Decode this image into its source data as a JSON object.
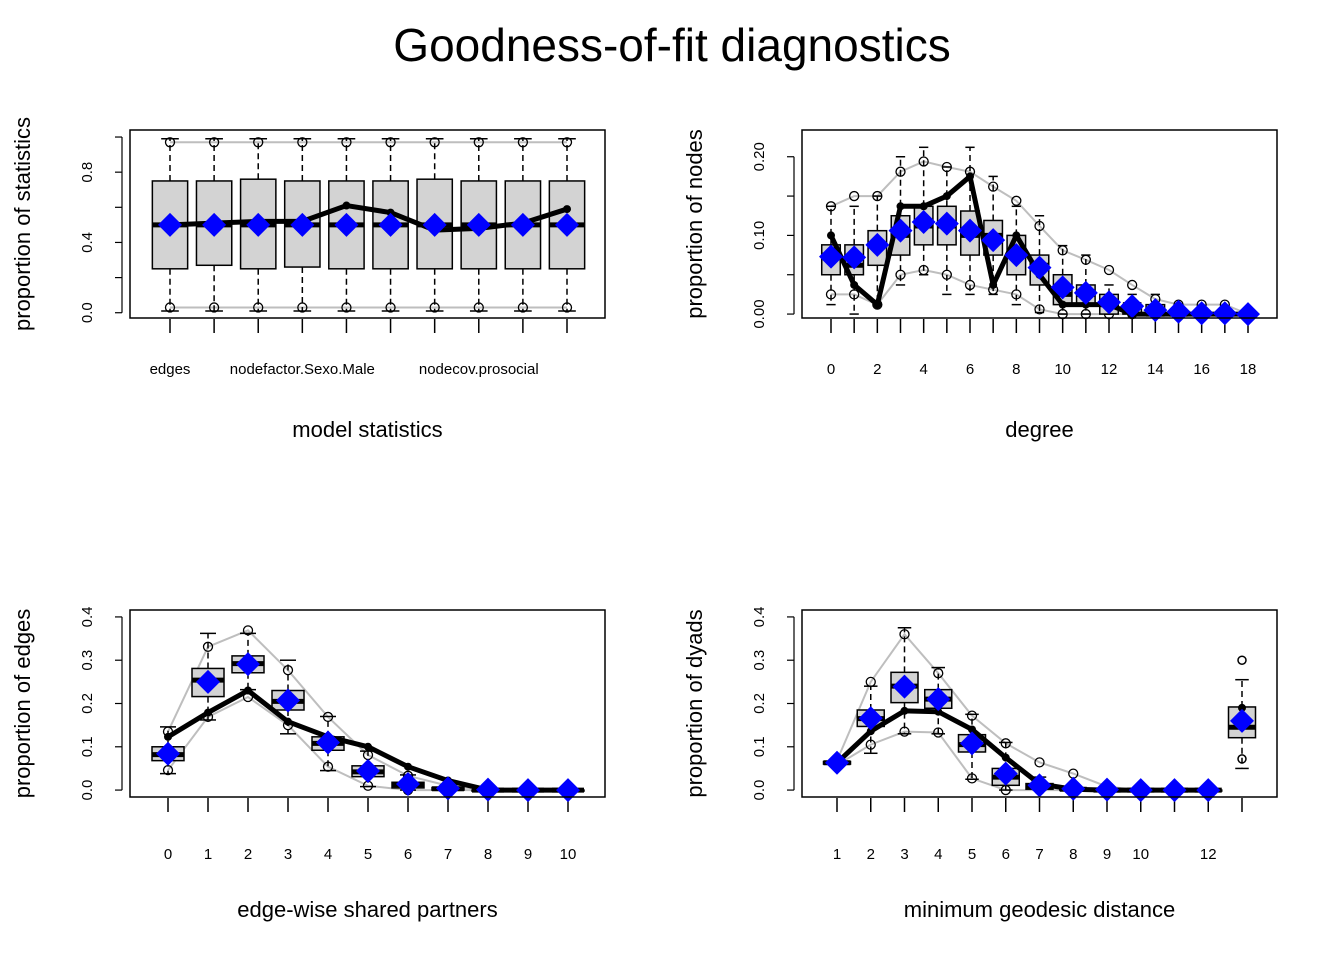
{
  "title": "Goodness-of-fit diagnostics",
  "colors": {
    "observed": "#000000",
    "simulated_mean": "#0000ff",
    "box_fill": "#d3d3d3",
    "bounds": "#bebebe"
  },
  "chart_data": [
    {
      "id": "model-statistics",
      "type": "boxplot",
      "xlabel": "model statistics",
      "ylabel": "proportion of statistics",
      "ylim": [
        -0.03,
        1.04
      ],
      "yticks": [
        0.0,
        0.4,
        0.8
      ],
      "ytick_marks": [
        0.0,
        0.2,
        0.4,
        0.6,
        0.8,
        1.0
      ],
      "yticklabels": [
        "0.0",
        "0.4",
        "0.8"
      ],
      "x": [
        1,
        2,
        3,
        4,
        5,
        6,
        7,
        8,
        9,
        10
      ],
      "xticklabels": [
        {
          "at": 1,
          "label": "edges"
        },
        {
          "at": 4,
          "label": "nodefactor.Sexo.Male"
        },
        {
          "at": 8,
          "label": "nodecov.prosocial"
        }
      ],
      "xtick_marks": [
        1,
        2,
        3,
        4,
        5,
        6,
        7,
        8,
        9,
        10
      ],
      "observed": [
        0.5,
        0.51,
        0.52,
        0.52,
        0.61,
        0.57,
        0.47,
        0.48,
        0.51,
        0.59
      ],
      "simulated_mean": [
        0.5,
        0.5,
        0.5,
        0.5,
        0.5,
        0.5,
        0.5,
        0.5,
        0.5,
        0.5
      ],
      "boxes": [
        {
          "q1": 0.25,
          "med": 0.5,
          "q3": 0.75,
          "lo": 0.01,
          "hi": 0.99
        },
        {
          "q1": 0.27,
          "med": 0.5,
          "q3": 0.75,
          "lo": 0.01,
          "hi": 0.99
        },
        {
          "q1": 0.25,
          "med": 0.5,
          "q3": 0.76,
          "lo": 0.01,
          "hi": 0.99
        },
        {
          "q1": 0.26,
          "med": 0.5,
          "q3": 0.75,
          "lo": 0.01,
          "hi": 0.99
        },
        {
          "q1": 0.25,
          "med": 0.5,
          "q3": 0.75,
          "lo": 0.01,
          "hi": 0.99
        },
        {
          "q1": 0.25,
          "med": 0.5,
          "q3": 0.75,
          "lo": 0.01,
          "hi": 0.99
        },
        {
          "q1": 0.25,
          "med": 0.5,
          "q3": 0.76,
          "lo": 0.01,
          "hi": 0.99
        },
        {
          "q1": 0.25,
          "med": 0.5,
          "q3": 0.75,
          "lo": 0.01,
          "hi": 0.99
        },
        {
          "q1": 0.25,
          "med": 0.5,
          "q3": 0.75,
          "lo": 0.01,
          "hi": 0.99
        },
        {
          "q1": 0.25,
          "med": 0.5,
          "q3": 0.75,
          "lo": 0.01,
          "hi": 0.99
        }
      ],
      "upper_bound": [
        0.97,
        0.97,
        0.97,
        0.97,
        0.97,
        0.97,
        0.97,
        0.97,
        0.97,
        0.97
      ],
      "lower_bound": [
        0.03,
        0.03,
        0.03,
        0.03,
        0.03,
        0.03,
        0.03,
        0.03,
        0.03,
        0.03
      ],
      "outliers": []
    },
    {
      "id": "degree",
      "type": "boxplot",
      "xlabel": "degree",
      "ylabel": "proportion of nodes",
      "ylim": [
        -0.005,
        0.234
      ],
      "yticks": [
        0.0,
        0.1,
        0.2
      ],
      "ytick_marks": [
        0.0,
        0.05,
        0.1,
        0.15,
        0.2
      ],
      "yticklabels": [
        "0.00",
        "0.10",
        "0.20"
      ],
      "x": [
        0,
        1,
        2,
        3,
        4,
        5,
        6,
        7,
        8,
        9,
        10,
        11,
        12,
        13,
        14,
        15,
        16,
        17,
        18
      ],
      "xticklabels": [
        {
          "at": 0,
          "label": "0"
        },
        {
          "at": 2,
          "label": "2"
        },
        {
          "at": 4,
          "label": "4"
        },
        {
          "at": 6,
          "label": "6"
        },
        {
          "at": 8,
          "label": "8"
        },
        {
          "at": 10,
          "label": "10"
        },
        {
          "at": 12,
          "label": "12"
        },
        {
          "at": 14,
          "label": "14"
        },
        {
          "at": 16,
          "label": "16"
        },
        {
          "at": 18,
          "label": "18"
        }
      ],
      "xtick_marks": [
        0,
        1,
        2,
        3,
        4,
        5,
        6,
        7,
        8,
        9,
        10,
        11,
        12,
        13,
        14,
        15,
        16,
        17,
        18
      ],
      "observed": [
        0.1,
        0.037,
        0.012,
        0.137,
        0.137,
        0.15,
        0.175,
        0.037,
        0.1,
        0.05,
        0.012,
        0.012,
        0.012,
        0.0,
        0.0,
        0.0,
        0.0,
        0.0,
        0.0
      ],
      "simulated_mean": [
        0.073,
        0.072,
        0.088,
        0.106,
        0.117,
        0.115,
        0.106,
        0.094,
        0.075,
        0.059,
        0.034,
        0.027,
        0.015,
        0.01,
        0.005,
        0.003,
        0.001,
        0.001,
        0.0
      ],
      "boxes": [
        {
          "q1": 0.05,
          "med": 0.075,
          "q3": 0.088,
          "lo": 0.012,
          "hi": 0.137
        },
        {
          "q1": 0.05,
          "med": 0.062,
          "q3": 0.088,
          "lo": 0.0,
          "hi": 0.137
        },
        {
          "q1": 0.062,
          "med": 0.088,
          "q3": 0.106,
          "lo": 0.012,
          "hi": 0.15
        },
        {
          "q1": 0.075,
          "med": 0.1,
          "q3": 0.125,
          "lo": 0.037,
          "hi": 0.2
        },
        {
          "q1": 0.088,
          "med": 0.112,
          "q3": 0.137,
          "lo": 0.05,
          "hi": 0.212
        },
        {
          "q1": 0.088,
          "med": 0.112,
          "q3": 0.137,
          "lo": 0.025,
          "hi": 0.187
        },
        {
          "q1": 0.075,
          "med": 0.1,
          "q3": 0.131,
          "lo": 0.025,
          "hi": 0.212
        },
        {
          "q1": 0.075,
          "med": 0.1,
          "q3": 0.119,
          "lo": 0.025,
          "hi": 0.175
        },
        {
          "q1": 0.05,
          "med": 0.075,
          "q3": 0.1,
          "lo": 0.012,
          "hi": 0.137
        },
        {
          "q1": 0.037,
          "med": 0.062,
          "q3": 0.075,
          "lo": 0.002,
          "hi": 0.125
        },
        {
          "q1": 0.012,
          "med": 0.025,
          "q3": 0.05,
          "lo": 0.0,
          "hi": 0.087
        },
        {
          "q1": 0.012,
          "med": 0.025,
          "q3": 0.037,
          "lo": 0.0,
          "hi": 0.075
        },
        {
          "q1": 0.0,
          "med": 0.012,
          "q3": 0.025,
          "lo": 0.0,
          "hi": 0.037
        },
        {
          "q1": 0.0,
          "med": 0.012,
          "q3": 0.012,
          "lo": 0.0,
          "hi": 0.025
        },
        {
          "q1": 0.0,
          "med": 0.0,
          "q3": 0.012,
          "lo": 0.0,
          "hi": 0.025
        },
        {
          "q1": 0.0,
          "med": 0.0,
          "q3": 0.0,
          "lo": 0.0,
          "hi": 0.012
        },
        {
          "q1": 0.0,
          "med": 0.0,
          "q3": 0.0,
          "lo": 0.0,
          "hi": 0.0
        },
        {
          "q1": 0.0,
          "med": 0.0,
          "q3": 0.0,
          "lo": 0.0,
          "hi": 0.0
        },
        {
          "q1": 0.0,
          "med": 0.0,
          "q3": 0.0,
          "lo": 0.0,
          "hi": 0.0
        }
      ],
      "upper_bound": [
        0.137,
        0.15,
        0.15,
        0.181,
        0.194,
        0.187,
        0.181,
        0.162,
        0.144,
        0.112,
        0.081,
        0.069,
        0.056,
        0.037,
        0.019,
        0.012,
        0.012,
        0.012,
        0.0
      ],
      "lower_bound": [
        0.025,
        0.025,
        0.012,
        0.05,
        0.056,
        0.05,
        0.037,
        0.031,
        0.025,
        0.006,
        0.0,
        0.0,
        0.0,
        0.0,
        0.0,
        0.0,
        0.0,
        0.0,
        0.0
      ],
      "outliers": []
    },
    {
      "id": "edge-wise-shared-partners",
      "type": "boxplot",
      "xlabel": "edge-wise shared partners",
      "ylabel": "proportion of edges",
      "ylim": [
        -0.016,
        0.416
      ],
      "yticks": [
        0.0,
        0.1,
        0.2,
        0.3,
        0.4
      ],
      "ytick_marks": [
        0.0,
        0.1,
        0.2,
        0.3,
        0.4
      ],
      "yticklabels": [
        "0.0",
        "0.1",
        "0.2",
        "0.3",
        "0.4"
      ],
      "x": [
        0,
        1,
        2,
        3,
        4,
        5,
        6,
        7,
        8,
        9,
        10
      ],
      "xticklabels": [
        {
          "at": 0,
          "label": "0"
        },
        {
          "at": 1,
          "label": "1"
        },
        {
          "at": 2,
          "label": "2"
        },
        {
          "at": 3,
          "label": "3"
        },
        {
          "at": 4,
          "label": "4"
        },
        {
          "at": 5,
          "label": "5"
        },
        {
          "at": 6,
          "label": "6"
        },
        {
          "at": 7,
          "label": "7"
        },
        {
          "at": 8,
          "label": "8"
        },
        {
          "at": 9,
          "label": "9"
        },
        {
          "at": 10,
          "label": "10"
        }
      ],
      "xtick_marks": [
        0,
        1,
        2,
        3,
        4,
        5,
        6,
        7,
        8,
        9,
        10
      ],
      "observed": [
        0.123,
        0.179,
        0.23,
        0.158,
        0.123,
        0.1,
        0.054,
        0.022,
        0.0,
        0.0,
        0.0
      ],
      "simulated_mean": [
        0.084,
        0.25,
        0.291,
        0.207,
        0.11,
        0.044,
        0.014,
        0.004,
        0.001,
        0.0,
        0.0
      ],
      "boxes": [
        {
          "q1": 0.068,
          "med": 0.082,
          "q3": 0.1,
          "lo": 0.038,
          "hi": 0.146
        },
        {
          "q1": 0.216,
          "med": 0.254,
          "q3": 0.281,
          "lo": 0.162,
          "hi": 0.362
        },
        {
          "q1": 0.271,
          "med": 0.292,
          "q3": 0.31,
          "lo": 0.232,
          "hi": 0.362
        },
        {
          "q1": 0.185,
          "med": 0.205,
          "q3": 0.23,
          "lo": 0.13,
          "hi": 0.3
        },
        {
          "q1": 0.092,
          "med": 0.108,
          "q3": 0.123,
          "lo": 0.045,
          "hi": 0.17
        },
        {
          "q1": 0.031,
          "med": 0.042,
          "q3": 0.056,
          "lo": 0.008,
          "hi": 0.09
        },
        {
          "q1": 0.005,
          "med": 0.012,
          "q3": 0.018,
          "lo": 0.0,
          "hi": 0.035
        },
        {
          "q1": 0.0,
          "med": 0.003,
          "q3": 0.006,
          "lo": 0.0,
          "hi": 0.012
        },
        {
          "q1": 0.0,
          "med": 0.0,
          "q3": 0.0,
          "lo": 0.0,
          "hi": 0.0
        },
        {
          "q1": 0.0,
          "med": 0.0,
          "q3": 0.0,
          "lo": 0.0,
          "hi": 0.0
        },
        {
          "q1": 0.0,
          "med": 0.0,
          "q3": 0.0,
          "lo": 0.0,
          "hi": 0.0
        }
      ],
      "upper_bound": [
        0.135,
        0.331,
        0.369,
        0.277,
        0.169,
        0.081,
        0.033,
        0.01,
        0.0,
        0.0,
        0.0
      ],
      "lower_bound": [
        0.046,
        0.169,
        0.215,
        0.15,
        0.054,
        0.01,
        0.0,
        0.0,
        0.0,
        0.0,
        0.0
      ],
      "outliers": []
    },
    {
      "id": "minimum-geodesic-distance",
      "type": "boxplot",
      "xlabel": "minimum geodesic distance",
      "ylabel": "proportion of dyads",
      "ylim": [
        -0.016,
        0.416
      ],
      "yticks": [
        0.0,
        0.1,
        0.2,
        0.3,
        0.4
      ],
      "ytick_marks": [
        0.0,
        0.1,
        0.2,
        0.3,
        0.4
      ],
      "yticklabels": [
        "0.0",
        "0.1",
        "0.2",
        "0.3",
        "0.4"
      ],
      "x": [
        1,
        2,
        3,
        4,
        5,
        6,
        7,
        8,
        9,
        10,
        11,
        12,
        13
      ],
      "xticklabels": [
        {
          "at": 1,
          "label": "1"
        },
        {
          "at": 2,
          "label": "2"
        },
        {
          "at": 3,
          "label": "3"
        },
        {
          "at": 4,
          "label": "4"
        },
        {
          "at": 5,
          "label": "5"
        },
        {
          "at": 6,
          "label": "6"
        },
        {
          "at": 7,
          "label": "7"
        },
        {
          "at": 8,
          "label": "8"
        },
        {
          "at": 9,
          "label": "9"
        },
        {
          "at": 10,
          "label": "10"
        },
        {
          "at": 12,
          "label": "12"
        }
      ],
      "xtick_marks": [
        1,
        2,
        3,
        4,
        5,
        6,
        7,
        8,
        9,
        10,
        11,
        12,
        13
      ],
      "observed": [
        0.063,
        0.136,
        0.183,
        0.181,
        0.14,
        0.075,
        0.014,
        0.002,
        0.0,
        0.0,
        0.0,
        0.0,
        0.19
      ],
      "simulated_mean": [
        0.063,
        0.166,
        0.239,
        0.21,
        0.108,
        0.038,
        0.011,
        0.003,
        0.001,
        0.0,
        0.0,
        0.0,
        0.16
      ],
      "boxes": [
        {
          "q1": 0.06,
          "med": 0.063,
          "q3": 0.066,
          "lo": 0.058,
          "hi": 0.068
        },
        {
          "q1": 0.147,
          "med": 0.165,
          "q3": 0.185,
          "lo": 0.085,
          "hi": 0.24
        },
        {
          "q1": 0.202,
          "med": 0.24,
          "q3": 0.272,
          "lo": 0.13,
          "hi": 0.375
        },
        {
          "q1": 0.189,
          "med": 0.21,
          "q3": 0.232,
          "lo": 0.13,
          "hi": 0.283
        },
        {
          "q1": 0.088,
          "med": 0.105,
          "q3": 0.128,
          "lo": 0.025,
          "hi": 0.175
        },
        {
          "q1": 0.011,
          "med": 0.03,
          "q3": 0.05,
          "lo": 0.0,
          "hi": 0.11
        },
        {
          "q1": 0.002,
          "med": 0.008,
          "q3": 0.015,
          "lo": 0.0,
          "hi": 0.03
        },
        {
          "q1": 0.0,
          "med": 0.002,
          "q3": 0.004,
          "lo": 0.0,
          "hi": 0.01
        },
        {
          "q1": 0.0,
          "med": 0.0,
          "q3": 0.001,
          "lo": 0.0,
          "hi": 0.003
        },
        {
          "q1": 0.0,
          "med": 0.0,
          "q3": 0.0,
          "lo": 0.0,
          "hi": 0.0
        },
        {
          "q1": 0.0,
          "med": 0.0,
          "q3": 0.0,
          "lo": 0.0,
          "hi": 0.0
        },
        {
          "q1": 0.0,
          "med": 0.0,
          "q3": 0.0,
          "lo": 0.0,
          "hi": 0.0
        },
        {
          "q1": 0.121,
          "med": 0.145,
          "q3": 0.192,
          "lo": 0.05,
          "hi": 0.255
        }
      ],
      "upper_bound": [
        0.068,
        0.25,
        0.36,
        0.27,
        0.172,
        0.108,
        0.064,
        0.038,
        0.008,
        0.0,
        0.0,
        0.0,
        null
      ],
      "lower_bound": [
        0.058,
        0.105,
        0.135,
        0.133,
        0.027,
        0.0,
        0.0,
        0.0,
        0.0,
        0.0,
        0.0,
        0.0,
        null
      ],
      "outliers": [
        {
          "at": 13,
          "values": [
            0.3,
            0.072
          ]
        }
      ]
    }
  ]
}
